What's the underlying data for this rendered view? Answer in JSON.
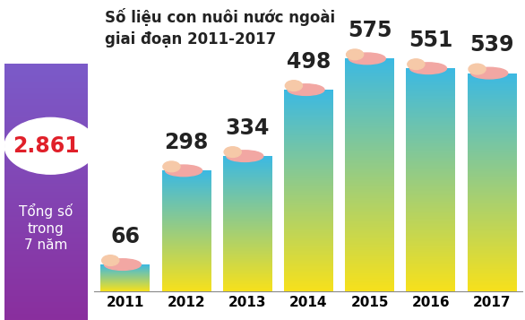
{
  "chart_data": {
    "type": "bar",
    "title": "Số liệu con nuôi nước ngoài\ngiai đoạn 2011-2017",
    "categories": [
      "2011",
      "2012",
      "2013",
      "2014",
      "2015",
      "2016",
      "2017"
    ],
    "values": [
      66,
      298,
      334,
      498,
      575,
      551,
      539
    ],
    "color": "#3cb9e3",
    "ylim": [
      0,
      700
    ],
    "data_labels": true,
    "tick_labels": "x",
    "grid": false,
    "annotations": [
      {
        "text": "2.861"
      },
      {
        "text": "Tổng số\ntrong\n7 năm"
      }
    ]
  }
}
